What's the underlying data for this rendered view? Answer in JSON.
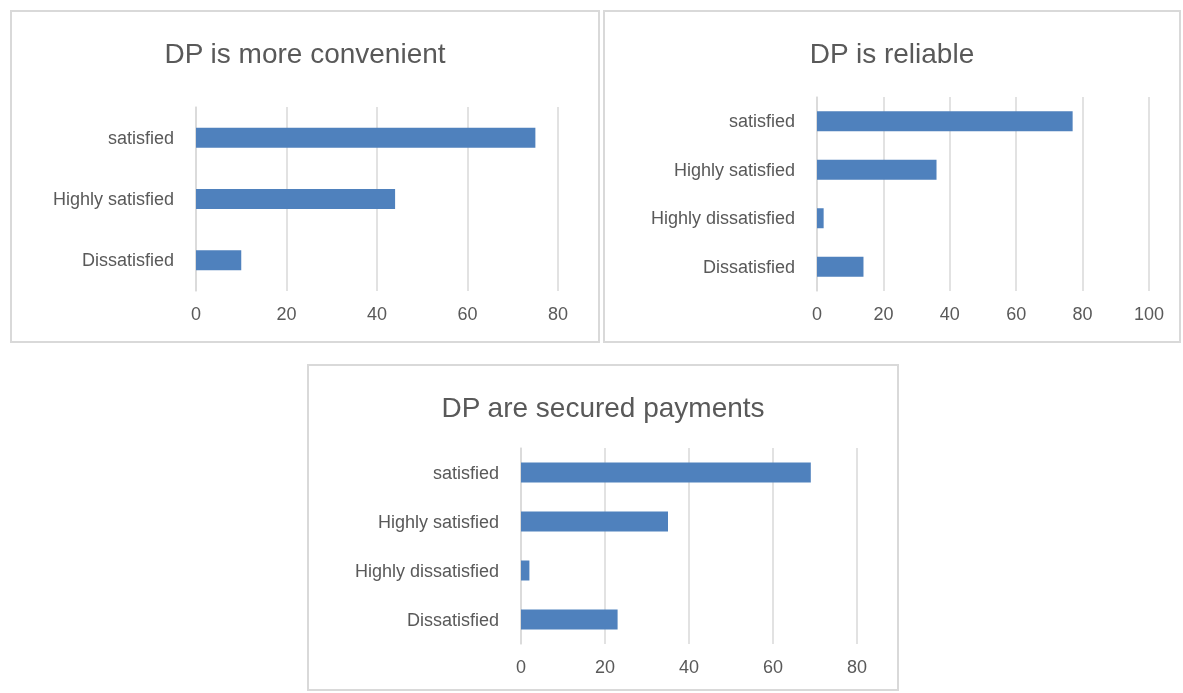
{
  "chart_data": [
    {
      "type": "bar",
      "orientation": "horizontal",
      "title": "DP is more convenient",
      "categories": [
        "satisfied",
        "Highly satisfied",
        "Dissatisfied"
      ],
      "values": [
        75,
        44,
        10
      ],
      "color": "#4f81bd",
      "xlim": [
        0,
        80
      ],
      "xticks": [
        0,
        20,
        40,
        60,
        80
      ],
      "grid": "x"
    },
    {
      "type": "bar",
      "orientation": "horizontal",
      "title": "DP is reliable",
      "categories": [
        "satisfied",
        "Highly satisfied",
        "Highly dissatisfied",
        "Dissatisfied"
      ],
      "values": [
        77,
        36,
        2,
        14
      ],
      "color": "#4f81bd",
      "xlim": [
        0,
        100
      ],
      "xticks": [
        0,
        20,
        40,
        60,
        80,
        100
      ],
      "grid": "x"
    },
    {
      "type": "bar",
      "orientation": "horizontal",
      "title": "DP are secured payments",
      "categories": [
        "satisfied",
        "Highly satisfied",
        "Highly dissatisfied",
        "Dissatisfied"
      ],
      "values": [
        69,
        35,
        2,
        23
      ],
      "color": "#4f81bd",
      "xlim": [
        0,
        80
      ],
      "xticks": [
        0,
        20,
        40,
        60,
        80
      ],
      "grid": "x"
    }
  ]
}
